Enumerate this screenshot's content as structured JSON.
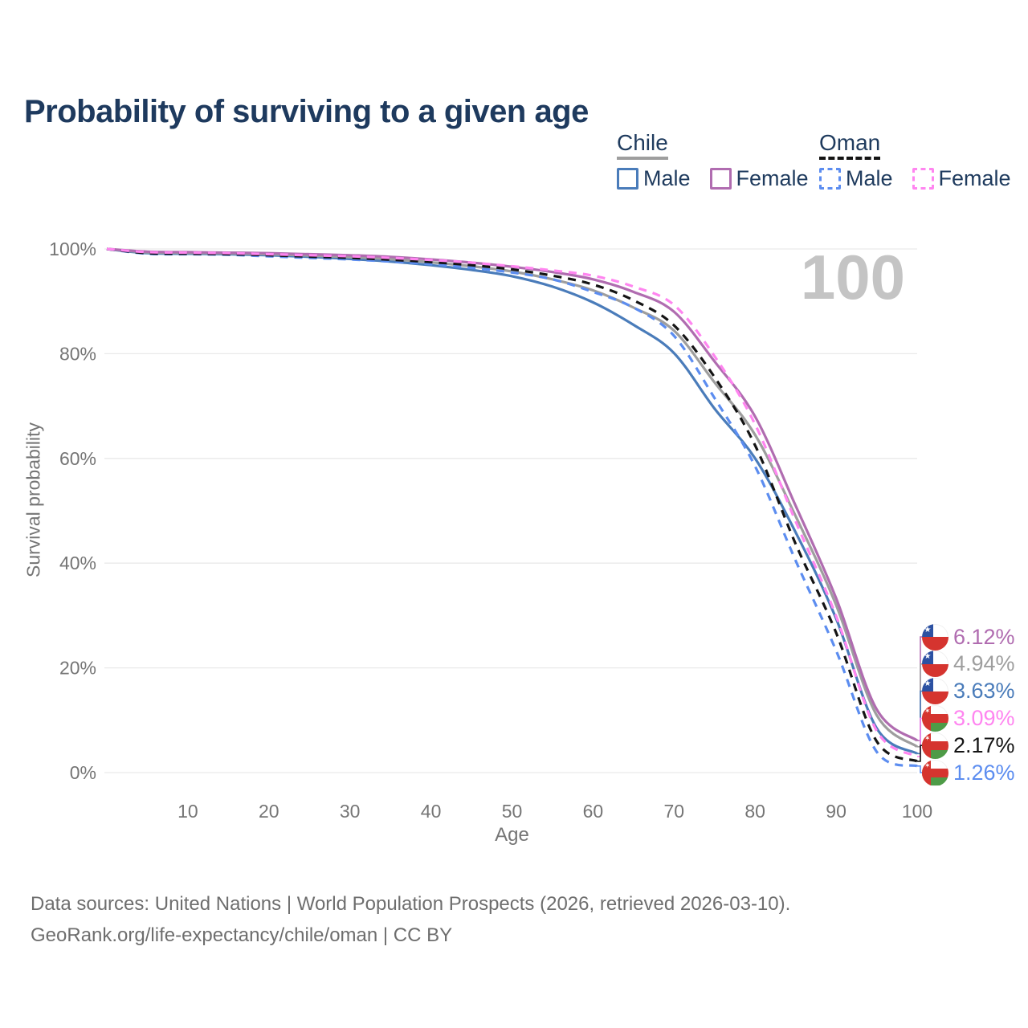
{
  "title": "Probability of surviving to a given age",
  "watermark": "100",
  "legend": {
    "groups": [
      {
        "label": "Chile",
        "style": "solid",
        "underline_color": "#9e9e9e",
        "items": [
          {
            "label": "Male",
            "color": "#4a7cba"
          },
          {
            "label": "Female",
            "color": "#b06cb0"
          }
        ]
      },
      {
        "label": "Oman",
        "style": "dashed",
        "underline_color": "#141414",
        "items": [
          {
            "label": "Male",
            "color": "#5c8df0"
          },
          {
            "label": "Female",
            "color": "#ff85f0"
          }
        ]
      }
    ]
  },
  "footer": {
    "line1": "Data sources: United Nations | World Population Prospects (2026, retrieved 2026-03-10).",
    "line2": "GeoRank.org/life-expectancy/chile/oman | CC BY"
  },
  "chart_data": {
    "type": "line",
    "title": "Probability of surviving to a given age",
    "xlabel": "Age",
    "ylabel": "Survival probability",
    "xlim": [
      0,
      100
    ],
    "ylim": [
      0,
      100
    ],
    "grid": "horizontal",
    "legend_position": "top-right",
    "y_ticks": [
      "0%",
      "20%",
      "40%",
      "60%",
      "80%",
      "100%"
    ],
    "x_ticks": [
      "10",
      "20",
      "30",
      "40",
      "50",
      "60",
      "70",
      "80",
      "90",
      "100"
    ],
    "x": [
      0,
      5,
      10,
      15,
      20,
      25,
      30,
      35,
      40,
      45,
      50,
      55,
      60,
      65,
      70,
      75,
      80,
      85,
      90,
      95,
      100
    ],
    "series": [
      {
        "id": "chile-male",
        "name": "Chile Male",
        "country": "Chile",
        "color": "#4a7cba",
        "dashed": false,
        "end_label": "3.63%",
        "values": [
          100,
          99.2,
          99.1,
          99.0,
          98.8,
          98.5,
          98.1,
          97.6,
          96.9,
          96.0,
          94.8,
          92.8,
          89.8,
          85.5,
          80.1,
          69.5,
          60.0,
          45.9,
          29.4,
          8.5,
          3.63
        ]
      },
      {
        "id": "chile-total",
        "name": "Chile (both sexes)",
        "country": "Chile",
        "color": "#9e9e9e",
        "dashed": false,
        "end_label": "4.94%",
        "values": [
          100,
          99.35,
          99.25,
          99.15,
          99.0,
          98.75,
          98.45,
          98.05,
          97.45,
          96.7,
          95.7,
          94.2,
          92.1,
          88.8,
          84.4,
          74.5,
          64.5,
          49.0,
          32.0,
          11.0,
          4.94
        ]
      },
      {
        "id": "chile-female",
        "name": "Chile Female",
        "country": "Chile",
        "color": "#b06cb0",
        "dashed": false,
        "end_label": "6.12%",
        "values": [
          100,
          99.5,
          99.4,
          99.3,
          99.2,
          99.0,
          98.8,
          98.5,
          98.0,
          97.4,
          96.6,
          95.6,
          94.2,
          91.8,
          88.0,
          78.5,
          68.0,
          51.0,
          33.3,
          12.1,
          6.12
        ]
      },
      {
        "id": "oman-male",
        "name": "Oman Male",
        "country": "Oman",
        "color": "#5c8df0",
        "dashed": true,
        "end_label": "1.26%",
        "values": [
          100,
          99.1,
          99.0,
          98.9,
          98.6,
          98.3,
          98.0,
          97.6,
          97.1,
          96.4,
          95.5,
          94.2,
          91.8,
          88.8,
          83.4,
          71.5,
          58.5,
          40.5,
          23.3,
          4.0,
          1.26
        ]
      },
      {
        "id": "oman-total",
        "name": "Oman (both sexes)",
        "country": "Oman",
        "color": "#141414",
        "dashed": true,
        "end_label": "2.17%",
        "values": [
          100,
          99.2,
          99.1,
          99.0,
          98.8,
          98.55,
          98.3,
          97.95,
          97.5,
          96.9,
          96.1,
          94.9,
          93.2,
          90.2,
          85.4,
          75.5,
          62.5,
          43.7,
          26.7,
          6.0,
          2.17
        ]
      },
      {
        "id": "oman-female",
        "name": "Oman Female",
        "country": "Oman",
        "color": "#ff85f0",
        "dashed": true,
        "end_label": "3.09%",
        "values": [
          100,
          99.4,
          99.3,
          99.2,
          99.0,
          98.8,
          98.6,
          98.3,
          97.9,
          97.4,
          96.7,
          95.9,
          94.9,
          92.8,
          89.3,
          79.5,
          66.5,
          48.0,
          29.9,
          8.0,
          3.09
        ]
      }
    ]
  }
}
